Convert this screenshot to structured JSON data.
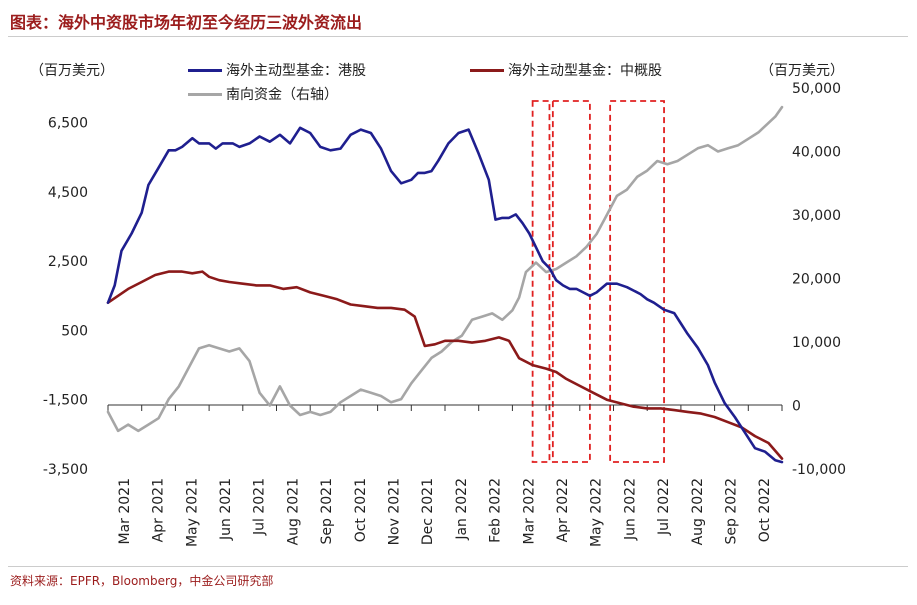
{
  "title": "图表：海外中资股市场年初至今经历三波外资流出",
  "source": "资料来源：EPFR，Bloomberg，中金公司研究部",
  "chart_data": {
    "type": "line",
    "left_unit": "（百万美元）",
    "right_unit": "（百万美元）",
    "left_ticks": [
      "6,500",
      "4,500",
      "2,500",
      "500",
      "-1,500",
      "-3,500"
    ],
    "right_ticks": [
      "50,000",
      "40,000",
      "30,000",
      "20,000",
      "10,000",
      "0",
      "-10,000"
    ],
    "left_ylim": [
      -3500,
      7500
    ],
    "right_ylim": [
      -10000,
      50000
    ],
    "x_ticks": [
      "Mar 2021",
      "Apr 2021",
      "May 2021",
      "Jun 2021",
      "Jul 2021",
      "Aug 2021",
      "Sep 2021",
      "Oct 2021",
      "Nov 2021",
      "Dec 2021",
      "Jan 2022",
      "Feb 2022",
      "Mar 2022",
      "Apr 2022",
      "May 2022",
      "Jun 2022",
      "Jul 2022",
      "Aug 2022",
      "Sep 2022",
      "Oct 2022"
    ],
    "x_range": [
      0,
      20
    ],
    "series": [
      {
        "name": "海外主动型基金：港股",
        "axis": "left",
        "color": "#1f1f8f",
        "x": [
          0,
          0.2,
          0.4,
          0.7,
          1.0,
          1.2,
          1.5,
          1.8,
          2.0,
          2.2,
          2.5,
          2.7,
          3.0,
          3.2,
          3.4,
          3.7,
          3.9,
          4.2,
          4.5,
          4.8,
          5.1,
          5.4,
          5.7,
          6.0,
          6.3,
          6.6,
          6.9,
          7.2,
          7.5,
          7.8,
          8.1,
          8.4,
          8.7,
          9.0,
          9.2,
          9.4,
          9.6,
          9.8,
          10.1,
          10.4,
          10.7,
          11.0,
          11.3,
          11.5,
          11.7,
          11.9,
          12.1,
          12.3,
          12.5,
          12.7,
          12.9,
          13.1,
          13.3,
          13.5,
          13.7,
          13.9,
          14.1,
          14.3,
          14.5,
          14.8,
          15.1,
          15.4,
          15.6,
          15.8,
          16.0,
          16.2,
          16.5,
          16.8,
          17.0,
          17.2,
          17.5,
          17.8,
          18.0,
          18.3,
          18.6,
          18.9,
          19.2,
          19.5,
          19.8,
          20.0
        ],
        "y": [
          1300,
          1800,
          2800,
          3300,
          3900,
          4700,
          5200,
          5700,
          5700,
          5800,
          6050,
          5900,
          5900,
          5750,
          5900,
          5900,
          5800,
          5900,
          6100,
          5950,
          6150,
          5900,
          6350,
          6200,
          5800,
          5700,
          5750,
          6150,
          6300,
          6200,
          5750,
          5100,
          4750,
          4850,
          5050,
          5050,
          5100,
          5400,
          5900,
          6200,
          6300,
          5600,
          4850,
          3700,
          3750,
          3750,
          3850,
          3600,
          3300,
          2900,
          2500,
          2300,
          1950,
          1800,
          1700,
          1700,
          1600,
          1500,
          1600,
          1850,
          1850,
          1750,
          1650,
          1550,
          1400,
          1300,
          1100,
          1000,
          700,
          400,
          0,
          -500,
          -1000,
          -1600,
          -2000,
          -2450,
          -2900,
          -3000,
          -3250,
          -3300
        ],
        "values": [
          1300,
          1800,
          2800,
          3300,
          3900,
          4700,
          5200,
          5700,
          5700,
          5800,
          6050,
          5900,
          5900,
          5750,
          5900,
          5900,
          5800,
          5900,
          6100,
          5950,
          6150,
          5900,
          6350,
          6200,
          5800,
          5700,
          5750,
          6150,
          6300,
          6200,
          5750,
          5100,
          4750,
          4850,
          5050,
          5050,
          5100,
          5400,
          5900,
          6200,
          6300,
          5600,
          4850,
          3700,
          3750,
          3750,
          3850,
          3600,
          3300,
          2900,
          2500,
          2300,
          1950,
          1800,
          1700,
          1700,
          1600,
          1500,
          1600,
          1850,
          1850,
          1750,
          1650,
          1550,
          1400,
          1300,
          1100,
          1000,
          700,
          400,
          0,
          -500,
          -1000,
          -1600,
          -2000,
          -2450,
          -2900,
          -3000,
          -3250,
          -3300
        ]
      },
      {
        "name": "海外主动型基金：中概股",
        "axis": "left",
        "color": "#8b1a1a",
        "x": [
          0,
          0.3,
          0.6,
          1.0,
          1.4,
          1.8,
          2.2,
          2.5,
          2.8,
          3.0,
          3.3,
          3.6,
          4.0,
          4.4,
          4.8,
          5.2,
          5.6,
          6.0,
          6.4,
          6.8,
          7.2,
          7.6,
          8.0,
          8.4,
          8.8,
          9.1,
          9.4,
          9.7,
          10.0,
          10.4,
          10.8,
          11.2,
          11.6,
          11.9,
          12.2,
          12.6,
          13.0,
          13.3,
          13.6,
          14.0,
          14.4,
          14.8,
          15.2,
          15.6,
          16.0,
          16.4,
          16.8,
          17.2,
          17.6,
          18.0,
          18.4,
          18.8,
          19.2,
          19.6,
          20.0
        ],
        "y": [
          1300,
          1500,
          1700,
          1900,
          2100,
          2200,
          2200,
          2150,
          2200,
          2050,
          1950,
          1900,
          1850,
          1800,
          1800,
          1700,
          1750,
          1600,
          1500,
          1400,
          1250,
          1200,
          1150,
          1150,
          1100,
          900,
          50,
          100,
          200,
          200,
          150,
          200,
          300,
          200,
          -300,
          -500,
          -600,
          -700,
          -900,
          -1100,
          -1300,
          -1500,
          -1600,
          -1700,
          -1750,
          -1750,
          -1800,
          -1850,
          -1900,
          -2000,
          -2150,
          -2300,
          -2550,
          -2750,
          -3200
        ],
        "values": [
          1300,
          1500,
          1700,
          1900,
          2100,
          2200,
          2200,
          2150,
          2200,
          2050,
          1950,
          1900,
          1850,
          1800,
          1800,
          1700,
          1750,
          1600,
          1500,
          1400,
          1250,
          1200,
          1150,
          1150,
          1100,
          900,
          50,
          100,
          200,
          200,
          150,
          200,
          300,
          200,
          -300,
          -500,
          -600,
          -700,
          -900,
          -1100,
          -1300,
          -1500,
          -1600,
          -1700,
          -1750,
          -1750,
          -1800,
          -1850,
          -1900,
          -2000,
          -2150,
          -2300,
          -2550,
          -2750,
          -3200
        ]
      },
      {
        "name": "南向资金（右轴）",
        "axis": "right",
        "color": "#a6a6a6",
        "x": [
          0,
          0.3,
          0.6,
          0.9,
          1.2,
          1.5,
          1.8,
          2.1,
          2.4,
          2.7,
          3.0,
          3.3,
          3.6,
          3.9,
          4.2,
          4.5,
          4.8,
          5.1,
          5.4,
          5.7,
          6.0,
          6.3,
          6.6,
          6.9,
          7.2,
          7.5,
          7.8,
          8.1,
          8.4,
          8.7,
          9.0,
          9.3,
          9.6,
          9.9,
          10.2,
          10.5,
          10.8,
          11.1,
          11.4,
          11.7,
          12.0,
          12.2,
          12.4,
          12.7,
          13.0,
          13.3,
          13.6,
          13.9,
          14.2,
          14.5,
          14.8,
          15.1,
          15.4,
          15.7,
          16.0,
          16.3,
          16.6,
          16.9,
          17.2,
          17.5,
          17.8,
          18.1,
          18.4,
          18.7,
          19.0,
          19.3,
          19.6,
          19.8,
          20.0
        ],
        "y": [
          -1000,
          -4000,
          -3000,
          -4000,
          -3000,
          -2000,
          1000,
          3000,
          6000,
          9000,
          9500,
          9000,
          8500,
          9000,
          7000,
          2000,
          0,
          3000,
          0,
          -1500,
          -1000,
          -1500,
          -1000,
          500,
          1500,
          2500,
          2000,
          1500,
          500,
          1000,
          3500,
          5500,
          7500,
          8500,
          10000,
          11000,
          13500,
          14000,
          14500,
          13500,
          15000,
          17000,
          21000,
          22500,
          21000,
          21500,
          22500,
          23500,
          25000,
          27000,
          30000,
          33000,
          34000,
          36000,
          37000,
          38500,
          38000,
          38500,
          39500,
          40500,
          41000,
          40000,
          40500,
          41000,
          42000,
          43000,
          44500,
          45500,
          47000
        ]
      }
    ],
    "boxes_x": [
      [
        12.6,
        13.1
      ],
      [
        13.2,
        14.3
      ],
      [
        14.9,
        16.5
      ]
    ]
  }
}
